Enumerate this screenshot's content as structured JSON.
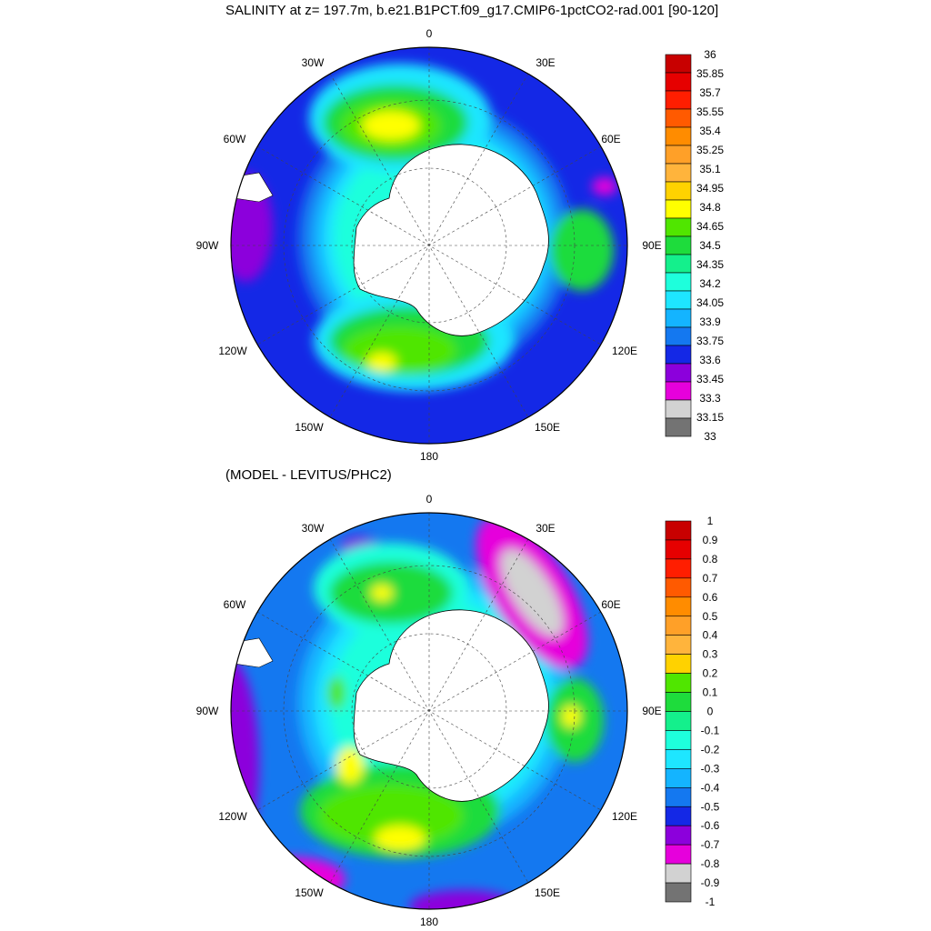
{
  "main_title": "SALINITY at z= 197.7m, b.e21.B1PCT.f09_g17.CMIP6-1pctCO2-rad.001 [90-120]",
  "sub_title": "(MODEL - LEVITUS/PHC2)",
  "longitude_labels": {
    "lon0": "0",
    "e30": "30E",
    "e60": "60E",
    "e90": "90E",
    "e120": "120E",
    "e150": "150E",
    "lon180": "180",
    "w150": "150W",
    "w120": "120W",
    "w90": "90W",
    "w60": "60W",
    "w30": "30W"
  },
  "colors": {
    "land": "#ffffff",
    "top_ocean_base": "#1428e6",
    "bottom_ocean_base": "#1478f0"
  },
  "top_colorbar": {
    "labels": [
      "36",
      "35.85",
      "35.7",
      "35.55",
      "35.4",
      "35.25",
      "35.1",
      "34.95",
      "34.8",
      "34.65",
      "34.5",
      "34.35",
      "34.2",
      "34.05",
      "33.9",
      "33.75",
      "33.6",
      "33.45",
      "33.3",
      "33.15",
      "33"
    ],
    "colors": [
      "#c80000",
      "#e60000",
      "#ff1e00",
      "#ff5a00",
      "#ff8c00",
      "#ffa028",
      "#ffb43c",
      "#ffd200",
      "#ffff00",
      "#50e600",
      "#1edc3c",
      "#14f08c",
      "#1effdc",
      "#1ee6ff",
      "#14b4ff",
      "#1478f0",
      "#1428e6",
      "#8c00dc",
      "#e600dc",
      "#d2d2d2",
      "#737373"
    ]
  },
  "bottom_colorbar": {
    "labels": [
      "1",
      "0.9",
      "0.8",
      "0.7",
      "0.6",
      "0.5",
      "0.4",
      "0.3",
      "0.2",
      "0.1",
      "0",
      "-0.1",
      "-0.2",
      "-0.3",
      "-0.4",
      "-0.5",
      "-0.6",
      "-0.7",
      "-0.8",
      "-0.9",
      "-1"
    ],
    "colors": [
      "#c80000",
      "#e60000",
      "#ff1e00",
      "#ff5a00",
      "#ff8c00",
      "#ffa028",
      "#ffb43c",
      "#ffd200",
      "#50e600",
      "#1edc3c",
      "#14f08c",
      "#1effdc",
      "#1ee6ff",
      "#14b4ff",
      "#1478f0",
      "#1428e6",
      "#8c00dc",
      "#e600dc",
      "#d2d2d2",
      "#737373"
    ]
  }
}
